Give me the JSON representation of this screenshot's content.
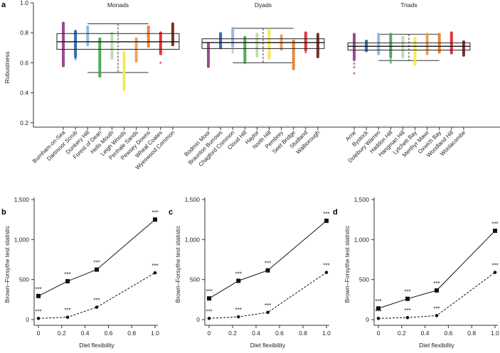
{
  "chart_data": [
    {
      "panel": "a",
      "type": "strip",
      "ylabel": "Robustness",
      "ylim": [
        0.2,
        1.0
      ],
      "yticks": [
        "0.2",
        "0.4",
        "0.6",
        "0.8",
        "1.0"
      ],
      "groups": [
        {
          "title": "Monads",
          "box": {
            "q1": 0.69,
            "median": 0.74,
            "q3": 0.795,
            "whisker_low": 0.535,
            "whisker_high": 0.86
          },
          "sites": [
            {
              "name": "Burnham-on-Sea",
              "min": 0.58,
              "max": 0.865,
              "color": "#8e3a86",
              "outliers": []
            },
            {
              "name": "Dartmoor Scrub",
              "min": 0.64,
              "max": 0.81,
              "color": "#1f5fa8",
              "outliers": [
                0.625
              ]
            },
            {
              "name": "Dunkery Hill",
              "min": 0.72,
              "max": 0.84,
              "color": "#86b4e2",
              "outliers": []
            },
            {
              "name": "Forest of Dean",
              "min": 0.51,
              "max": 0.76,
              "color": "#3da64a",
              "outliers": []
            },
            {
              "name": "Hells Mouth",
              "min": 0.63,
              "max": 0.8,
              "color": "#bcd9a6",
              "outliers": []
            },
            {
              "name": "Leigh Woods",
              "min": 0.42,
              "max": 0.67,
              "color": "#f2e94a",
              "outliers": []
            },
            {
              "name": "Penhale Sands",
              "min": 0.61,
              "max": 0.76,
              "color": "#ee9a4a",
              "outliers": []
            },
            {
              "name": "Pewsey Downs",
              "min": 0.71,
              "max": 0.84,
              "color": "#e87a2a",
              "outliers": []
            },
            {
              "name": "Wheal Coates",
              "min": 0.66,
              "max": 0.8,
              "color": "#e01f2b",
              "outliers": [
                0.6
              ]
            },
            {
              "name": "Wyeswood Common",
              "min": 0.72,
              "max": 0.86,
              "color": "#6b1c12",
              "outliers": []
            }
          ]
        },
        {
          "title": "Dyads",
          "box": {
            "q1": 0.695,
            "median": 0.735,
            "q3": 0.76,
            "whisker_low": 0.6,
            "whisker_high": 0.83
          },
          "sites": [
            {
              "name": "Bodmin Moor",
              "min": 0.575,
              "max": 0.725,
              "color": "#8e3a86",
              "outliers": []
            },
            {
              "name": "Braunton Burrows",
              "min": 0.7,
              "max": 0.795,
              "color": "#1f5fa8",
              "outliers": []
            },
            {
              "name": "Chagford Common",
              "min": 0.71,
              "max": 0.83,
              "color": "#86b4e2",
              "outliers": [
                0.685,
                0.67
              ]
            },
            {
              "name": "Cloud Hill",
              "min": 0.6,
              "max": 0.77,
              "color": "#3da64a",
              "outliers": []
            },
            {
              "name": "Haytor",
              "min": 0.645,
              "max": 0.79,
              "color": "#bcd9a6",
              "outliers": []
            },
            {
              "name": "North Hill",
              "min": 0.63,
              "max": 0.82,
              "color": "#f2e94a",
              "outliers": []
            },
            {
              "name": "Pembrey",
              "min": 0.69,
              "max": 0.78,
              "color": "#ee9a4a",
              "outliers": []
            },
            {
              "name": "Seet Bridge",
              "min": 0.56,
              "max": 0.745,
              "color": "#e87a2a",
              "outliers": []
            },
            {
              "name": "Studland",
              "min": 0.685,
              "max": 0.8,
              "color": "#e01f2b",
              "outliers": [
                0.67
              ]
            },
            {
              "name": "Walborough",
              "min": 0.64,
              "max": 0.79,
              "color": "#6b1c12",
              "outliers": []
            }
          ]
        },
        {
          "title": "Triads",
          "box": {
            "q1": 0.685,
            "median": 0.71,
            "q3": 0.733,
            "whisker_low": 0.615,
            "whisker_high": 0.79
          },
          "sites": [
            {
              "name": "Arne",
              "min": 0.62,
              "max": 0.79,
              "color": "#8e3a86",
              "outliers": [
                0.595,
                0.57,
                0.53
              ]
            },
            {
              "name": "Bystock",
              "min": 0.68,
              "max": 0.745,
              "color": "#1f5fa8",
              "outliers": []
            },
            {
              "name": "Dolebury Warren",
              "min": 0.66,
              "max": 0.79,
              "color": "#86b4e2",
              "outliers": []
            },
            {
              "name": "Haddon Hill",
              "min": 0.64,
              "max": 0.79,
              "color": "#3da64a",
              "outliers": [
                0.625,
                0.61,
                0.6
              ]
            },
            {
              "name": "Hangman Hill",
              "min": 0.64,
              "max": 0.77,
              "color": "#bcd9a6",
              "outliers": []
            },
            {
              "name": "Lytchett Bay",
              "min": 0.59,
              "max": 0.765,
              "color": "#f2e94a",
              "outliers": []
            },
            {
              "name": "Merthyr Mawr",
              "min": 0.66,
              "max": 0.79,
              "color": "#ee9a4a",
              "outliers": []
            },
            {
              "name": "Oxwich Bay",
              "min": 0.67,
              "max": 0.79,
              "color": "#e87a2a",
              "outliers": []
            },
            {
              "name": "Woodland Hill",
              "min": 0.665,
              "max": 0.8,
              "color": "#e01f2b",
              "outliers": []
            },
            {
              "name": "Woolacombe",
              "min": 0.65,
              "max": 0.74,
              "color": "#6b1c12",
              "outliers": []
            }
          ]
        }
      ]
    },
    {
      "panel": "b",
      "type": "line",
      "xlabel": "Diet flexibility",
      "ylabel": "Brown–Forsythe test statistic",
      "x": [
        0,
        0.25,
        0.5,
        1.0
      ],
      "xlim": [
        0,
        1.0
      ],
      "ylim": [
        0,
        1500
      ],
      "xticks": [
        "0",
        "0.2",
        "0.4",
        "0.6",
        "0.8",
        "1.0"
      ],
      "yticks": [
        "0",
        "500",
        "1,000",
        "1,500"
      ],
      "series": [
        {
          "style": "solid-square",
          "values": [
            295,
            480,
            625,
            1250
          ],
          "labels": [
            "***",
            "***",
            "***",
            "***"
          ]
        },
        {
          "style": "dashed-circle",
          "values": [
            15,
            30,
            155,
            585
          ],
          "labels": [
            "***",
            "***",
            "***",
            "***"
          ]
        }
      ]
    },
    {
      "panel": "c",
      "type": "line",
      "xlabel": "Diet flexibility",
      "ylabel": "Brown–Forsythe test statistic",
      "x": [
        0,
        0.25,
        0.5,
        1.0
      ],
      "xlim": [
        0,
        1.0
      ],
      "ylim": [
        0,
        1500
      ],
      "xticks": [
        "0",
        "0.2",
        "0.4",
        "0.6",
        "0.8",
        "1.0"
      ],
      "yticks": [
        "0",
        "500",
        "1,000",
        "1,500"
      ],
      "series": [
        {
          "style": "solid-square",
          "values": [
            265,
            485,
            615,
            1235
          ],
          "labels": [
            "***",
            "***",
            "***",
            "***"
          ]
        },
        {
          "style": "dashed-circle",
          "values": [
            15,
            35,
            90,
            590
          ],
          "labels": [
            "***",
            "***",
            "***",
            "***"
          ]
        }
      ]
    },
    {
      "panel": "d",
      "type": "line",
      "xlabel": "Diet flexibility",
      "ylabel": "Brown–Forsythe test statistic",
      "x": [
        0,
        0.25,
        0.5,
        1.0
      ],
      "xlim": [
        0,
        1.0
      ],
      "ylim": [
        0,
        1500
      ],
      "xticks": [
        "0",
        "0.2",
        "0.4",
        "0.6",
        "0.8",
        "1.0"
      ],
      "yticks": [
        "0",
        "500",
        "1,000",
        "1,500"
      ],
      "series": [
        {
          "style": "solid-square",
          "values": [
            140,
            260,
            365,
            1110
          ],
          "labels": [
            "***",
            "***",
            "***",
            "***"
          ]
        },
        {
          "style": "dashed-circle",
          "values": [
            15,
            25,
            50,
            590
          ],
          "labels": [
            "***",
            "***",
            "***",
            "***"
          ]
        }
      ]
    }
  ]
}
